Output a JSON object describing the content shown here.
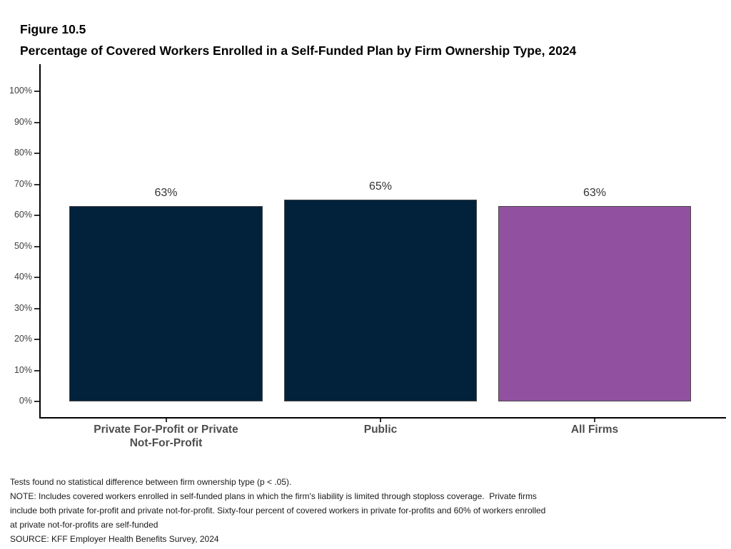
{
  "header": {
    "figure_label": "Figure 10.5",
    "title": "Percentage of Covered Workers Enrolled in a Self-Funded Plan by Firm Ownership Type, 2024"
  },
  "chart_data": {
    "type": "bar",
    "title": "Percentage of Covered Workers Enrolled in a Self-Funded Plan by Firm Ownership Type, 2024",
    "categories": [
      "Private For-Profit or Private Not-For-Profit",
      "Public",
      "All Firms"
    ],
    "category_label_lines": [
      [
        "Private For-Profit or Private",
        "Not-For-Profit"
      ],
      [
        "Public"
      ],
      [
        "All Firms"
      ]
    ],
    "values": [
      63,
      65,
      63
    ],
    "value_labels": [
      "63%",
      "65%",
      "63%"
    ],
    "bar_colors": [
      "#02213A",
      "#02213A",
      "#9251A0"
    ],
    "bar_border_color": "#474747",
    "xlabel": "",
    "ylabel": "",
    "ylim": [
      0,
      100
    ],
    "y_tick_labels": [
      "0%",
      "10%",
      "20%",
      "30%",
      "40%",
      "50%",
      "60%",
      "70%",
      "80%",
      "90%",
      "100%"
    ],
    "grid": false,
    "legend": "none"
  },
  "footnotes": {
    "lines": [
      "Tests found no statistical difference between firm ownership type (p < .05).",
      "NOTE: Includes covered workers enrolled in self-funded plans in which the firm's liability is limited through stoploss coverage.  Private firms",
      "include both private for-profit and private not-for-profit. Sixty-four percent of covered workers in private for-profits and 60% of workers enrolled",
      "at private not-for-profits are self-funded",
      "SOURCE: KFF Employer Health Benefits Survey, 2024"
    ]
  },
  "colors": {
    "navy": "#02213A",
    "purple": "#9251A0",
    "axis": "#000000",
    "tick_label": "#404040",
    "value_label": "#333333",
    "category_label": "#4D4D4D",
    "footnote": "#1A1A1A"
  }
}
